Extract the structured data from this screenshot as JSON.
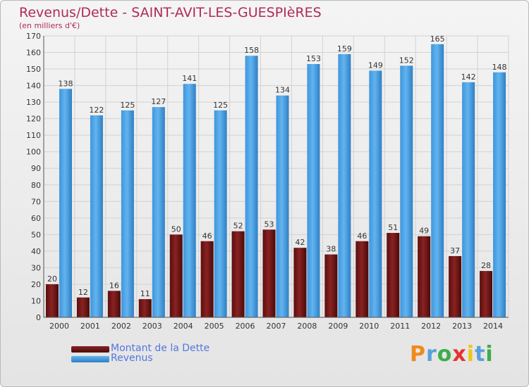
{
  "header": {
    "title": "Revenus/Dette - SAINT-AVIT-LES-GUESPIèRES",
    "subtitle": "(en milliers d'€)"
  },
  "legend": {
    "items": [
      {
        "label": "Montant de la Dette",
        "color": "#7a1a1a"
      },
      {
        "label": "Revenus",
        "color": "#4aa3e6"
      }
    ]
  },
  "logo": {
    "text": "Proxiti",
    "colors": [
      "#f08a1c",
      "#5aa0d8",
      "#3cae4a",
      "#e5322d",
      "#f0c419",
      "#5aa0d8",
      "#3cae4a"
    ]
  },
  "chart_data": {
    "type": "bar",
    "title": "Revenus/Dette - SAINT-AVIT-LES-GUESPIèRES",
    "subtitle": "(en milliers d'€)",
    "xlabel": "",
    "ylabel": "",
    "ylim": [
      0,
      170
    ],
    "yticks": [
      0,
      10,
      20,
      30,
      40,
      50,
      60,
      70,
      80,
      90,
      100,
      110,
      120,
      130,
      140,
      150,
      160,
      170
    ],
    "grid": true,
    "legend_position": "bottom-left",
    "categories": [
      "2000",
      "2001",
      "2002",
      "2003",
      "2004",
      "2005",
      "2006",
      "2007",
      "2008",
      "2009",
      "2010",
      "2011",
      "2012",
      "2013",
      "2014"
    ],
    "series": [
      {
        "name": "Montant de la Dette",
        "color": "#7a1a1a",
        "values": [
          20,
          12,
          16,
          11,
          50,
          46,
          52,
          53,
          42,
          38,
          46,
          51,
          49,
          37,
          28
        ]
      },
      {
        "name": "Revenus",
        "color": "#4aa3e6",
        "values": [
          138,
          122,
          125,
          127,
          141,
          125,
          158,
          134,
          153,
          159,
          149,
          152,
          165,
          142,
          148
        ]
      }
    ]
  }
}
